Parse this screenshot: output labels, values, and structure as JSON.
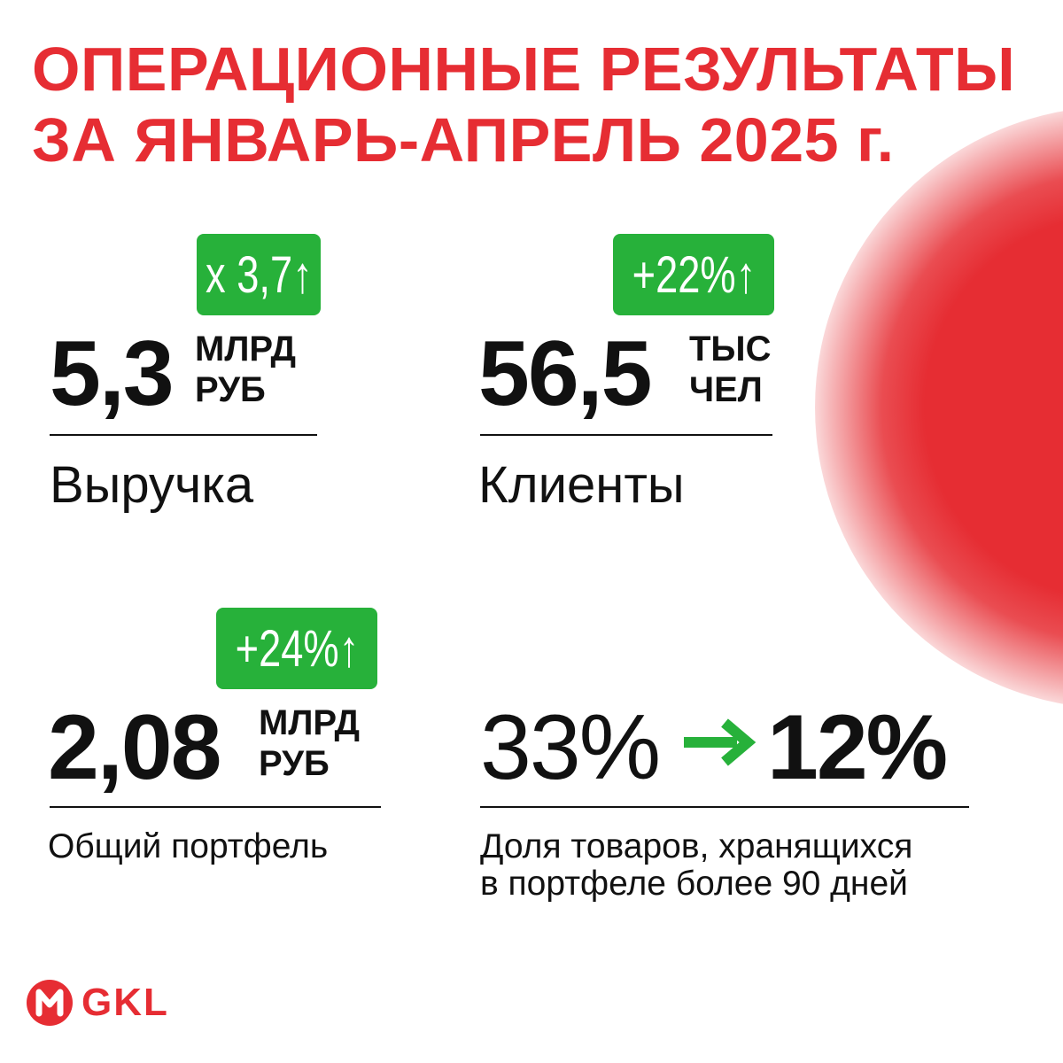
{
  "title": {
    "line1": "ОПЕРАЦИОННЫЕ РЕЗУЛЬТАТЫ",
    "line2": "ЗА ЯНВАРЬ-АПРЕЛЬ 2025 г."
  },
  "colors": {
    "accent_red": "#e62d33",
    "badge_green": "#27b13a",
    "text": "#111111"
  },
  "metrics": {
    "revenue": {
      "badge": "х 3,7↑",
      "value": "5,3",
      "unit_line1": "МЛРД",
      "unit_line2": "РУБ",
      "label": "Выручка"
    },
    "clients": {
      "badge": "+22%↑",
      "value": "56,5",
      "unit_line1": "ТЫС",
      "unit_line2": "ЧЕЛ",
      "label": "Клиенты"
    },
    "portfolio": {
      "badge": "+24%↑",
      "value": "2,08",
      "unit_line1": "МЛРД",
      "unit_line2": "РУБ",
      "label": "Общий портфель"
    },
    "aging": {
      "from": "33%",
      "to": "12%",
      "arrow_icon": "arrow-right-icon",
      "label_line1": "Доля товаров, хранящихся",
      "label_line2": "в портфеле более 90 дней"
    }
  },
  "logo": {
    "mark_icon": "m-circle-logo-icon",
    "text": "GKL"
  }
}
